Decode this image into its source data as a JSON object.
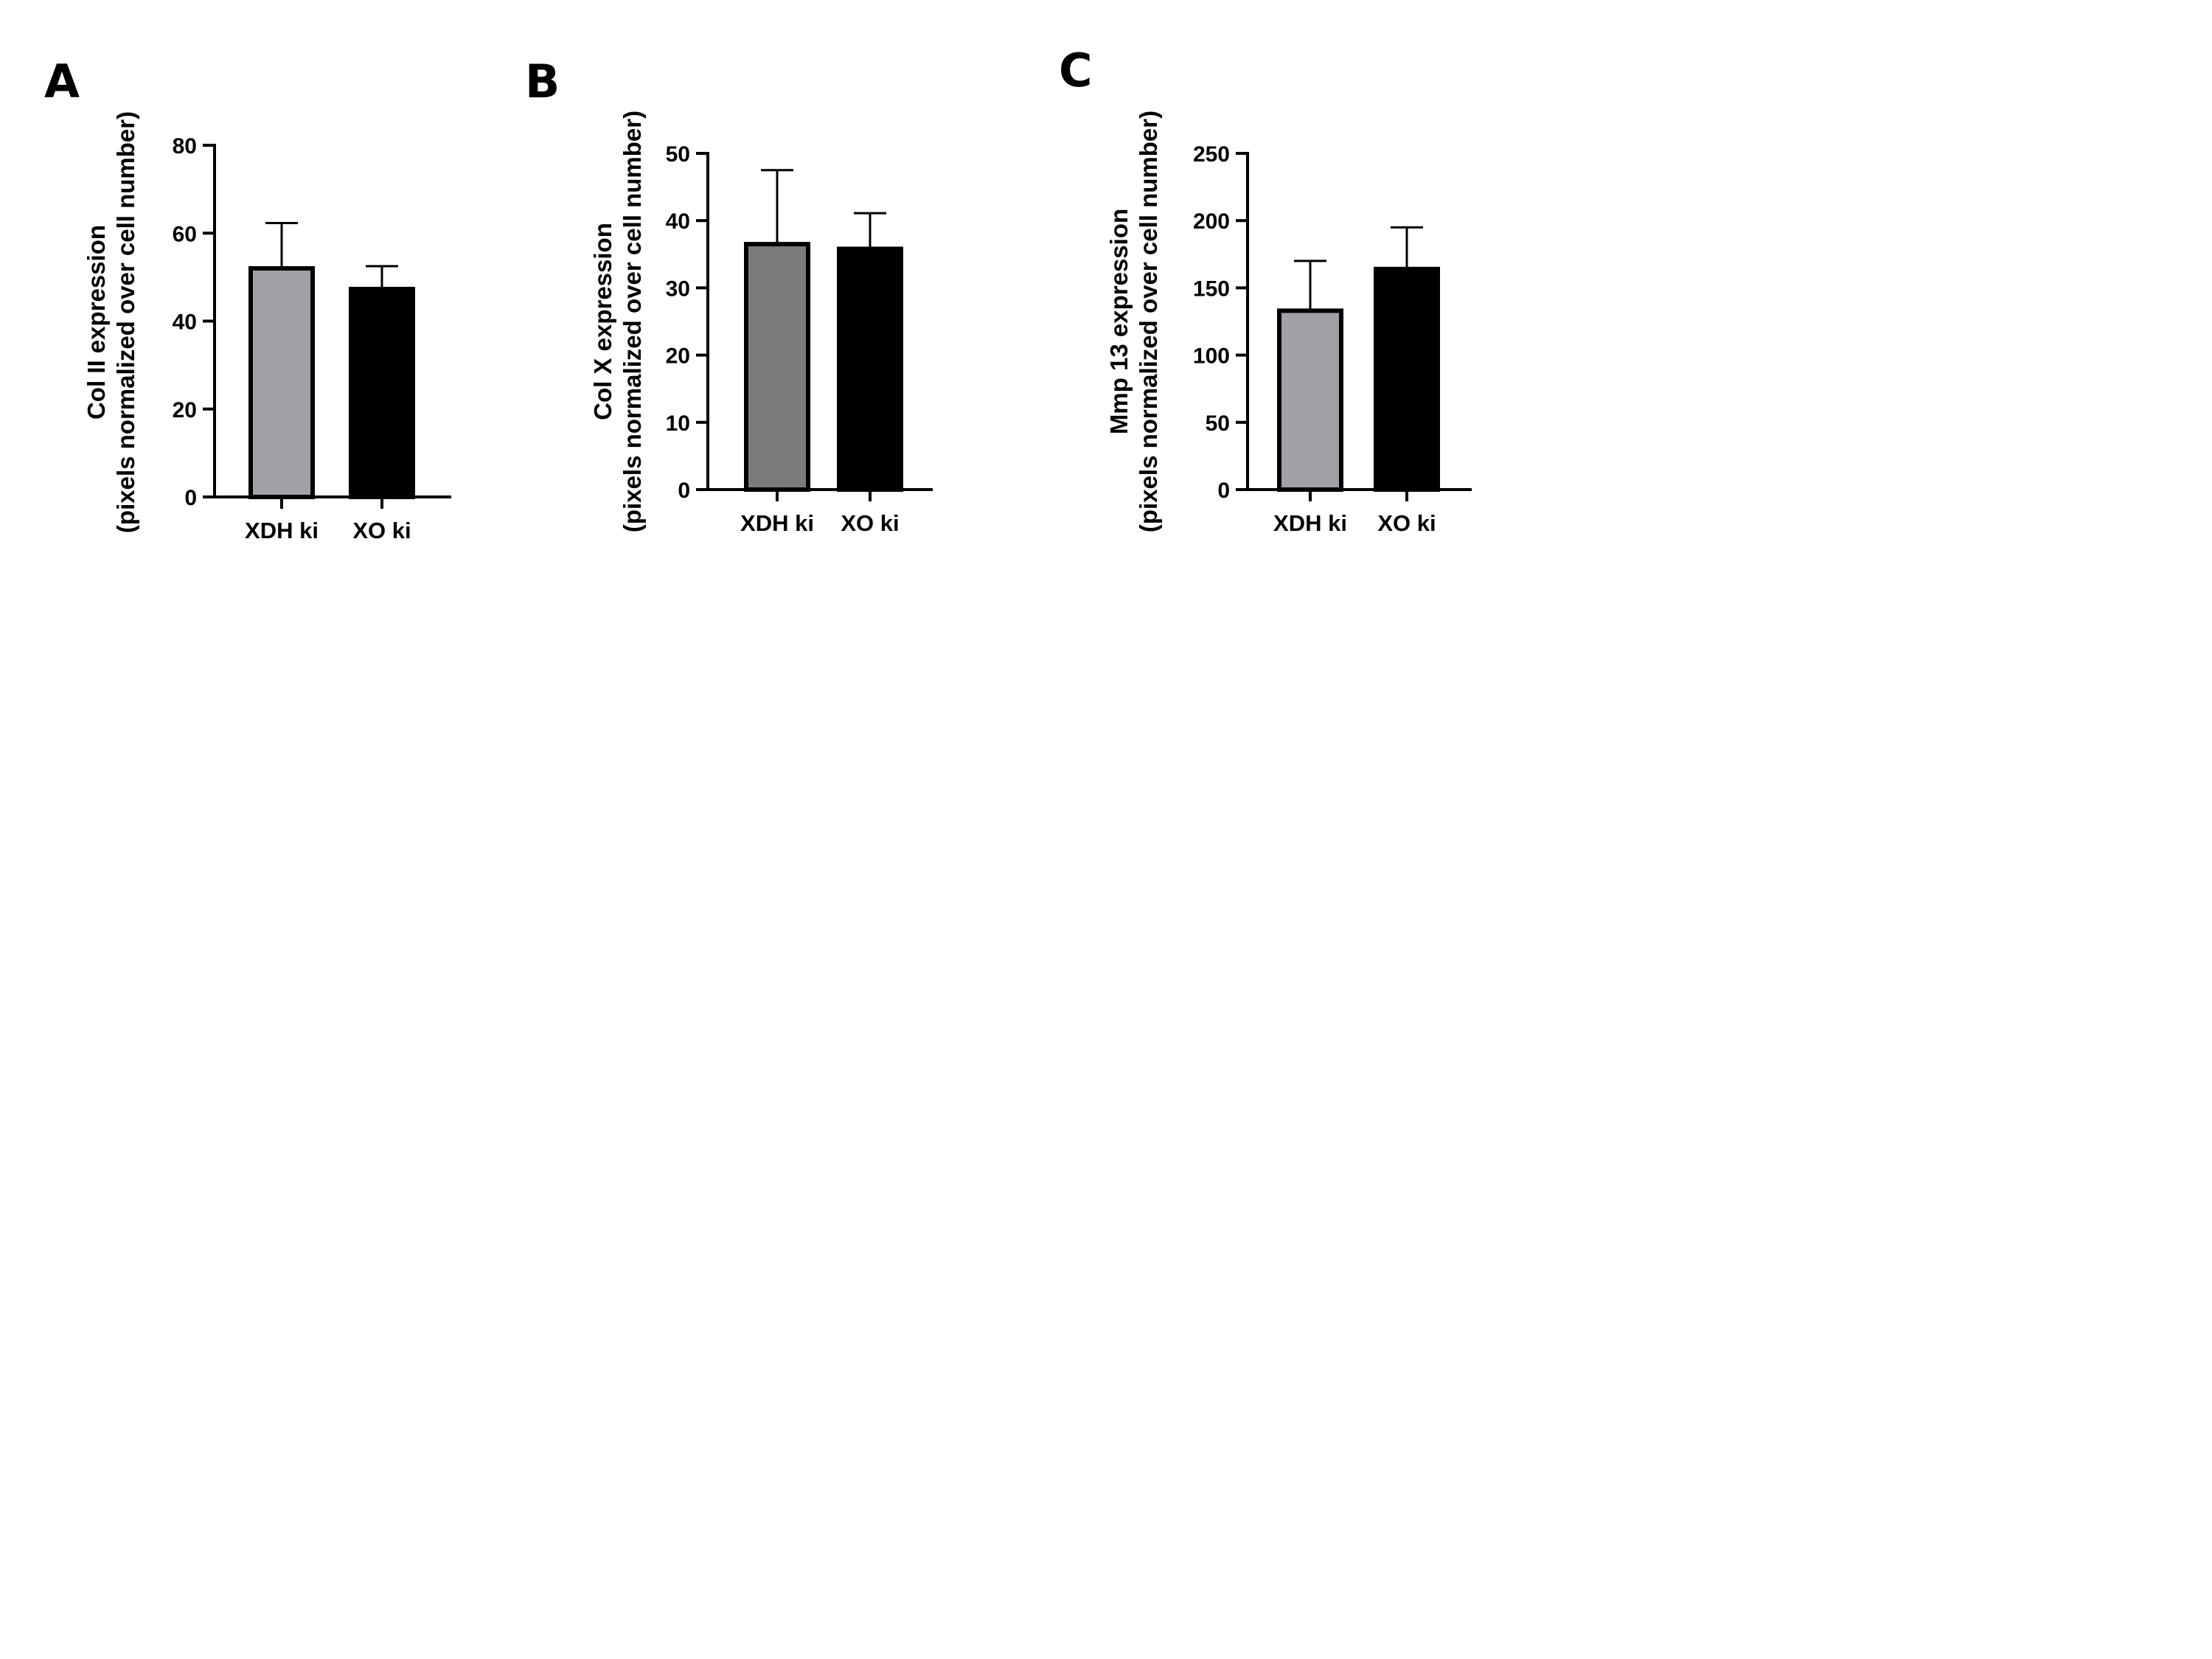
{
  "chart_data": [
    {
      "type": "bar",
      "panel": "A",
      "categories": [
        "XDH ki",
        "XO ki"
      ],
      "series": [
        {
          "values": [
            52,
            47.3
          ],
          "error": [
            10.3,
            5.2
          ],
          "colors": [
            "#a1a0a5",
            "#000000"
          ]
        }
      ],
      "ylabel_lines": [
        "Col II expression",
        "(pixels normalized over cell number)"
      ],
      "yticks": [
        "0",
        "20",
        "40",
        "60",
        "80"
      ],
      "ylim": [
        0,
        80
      ],
      "xlabel": "",
      "grid": false
    },
    {
      "type": "bar",
      "panel": "B",
      "categories": [
        "XDH ki",
        "XO ki"
      ],
      "series": [
        {
          "values": [
            36.5,
            35.8
          ],
          "error": [
            11,
            5.3
          ],
          "colors": [
            "#7c7c7c",
            "#000000"
          ]
        }
      ],
      "ylabel_lines": [
        "Col X expression",
        "(pixels normalized over cell number)"
      ],
      "yticks": [
        "0",
        "10",
        "20",
        "30",
        "40",
        "50"
      ],
      "ylim": [
        0,
        50
      ],
      "xlabel": "",
      "grid": false
    },
    {
      "type": "bar",
      "panel": "C",
      "categories": [
        "XDH ki",
        "XO ki"
      ],
      "series": [
        {
          "values": [
            133,
            164
          ],
          "error": [
            37,
            31
          ],
          "colors": [
            "#a1a0a5",
            "#000000"
          ]
        }
      ],
      "ylabel_lines": [
        "Mmp 13 expression",
        "(pixels normalized over cell number)"
      ],
      "yticks": [
        "0",
        "50",
        "100",
        "150",
        "200",
        "250"
      ],
      "ylim": [
        0,
        250
      ],
      "xlabel": "",
      "grid": false
    }
  ]
}
